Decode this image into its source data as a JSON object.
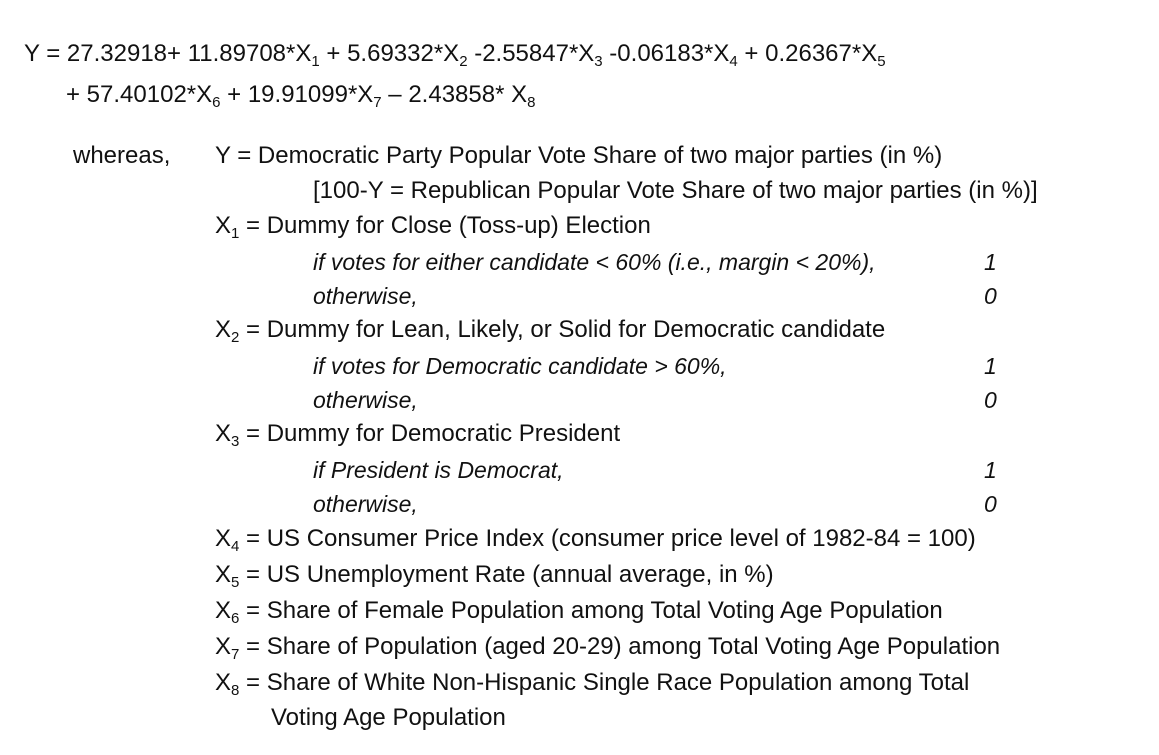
{
  "equation": {
    "line1": [
      {
        "t": "Y = 27.32918+ 11.89708*X"
      },
      {
        "s": "1"
      },
      {
        "t": " + 5.69332*X"
      },
      {
        "s": "2"
      },
      {
        "t": " -2.55847*X"
      },
      {
        "s": "3"
      },
      {
        "t": " -0.06183*X"
      },
      {
        "s": "4"
      },
      {
        "t": " + 0.26367*X"
      },
      {
        "s": "5"
      }
    ],
    "line2": [
      {
        "t": "+ 57.40102*X"
      },
      {
        "s": "6"
      },
      {
        "t": " + 19.91099*X"
      },
      {
        "s": "7"
      },
      {
        "t": " – 2.43858* X"
      },
      {
        "s": "8"
      }
    ]
  },
  "whereas_label": "whereas,",
  "definitions": {
    "y": "Y = Democratic Party Popular Vote Share of two major parties (in %)",
    "y_note": "[100-Y = Republican Popular Vote Share of two major parties (in %)]",
    "x1": {
      "var": "X",
      "sub": "1",
      "text": " = Dummy for Close (Toss-up) Election"
    },
    "x1_if": {
      "text": "if votes for either candidate < 60% (i.e., margin < 20%),",
      "value": "1"
    },
    "x1_else": {
      "text": "otherwise,",
      "value": "0"
    },
    "x2": {
      "var": "X",
      "sub": "2",
      "text": " = Dummy for Lean, Likely, or Solid for Democratic candidate"
    },
    "x2_if": {
      "text": "if votes for Democratic candidate > 60%,",
      "value": "1"
    },
    "x2_else": {
      "text": "otherwise,",
      "value": "0"
    },
    "x3": {
      "var": "X",
      "sub": "3",
      "text": " = Dummy for Democratic President"
    },
    "x3_if": {
      "text": "if President is Democrat,",
      "value": "1"
    },
    "x3_else": {
      "text": "otherwise,",
      "value": "0"
    },
    "x4": {
      "var": "X",
      "sub": "4",
      "text": " = US Consumer Price Index (consumer price level of 1982-84 = 100)"
    },
    "x5": {
      "var": "X",
      "sub": "5",
      "text": " = US Unemployment Rate (annual average, in %)"
    },
    "x6": {
      "var": "X",
      "sub": "6",
      "text": " = Share of Female Population among Total Voting Age Population"
    },
    "x7": {
      "var": "X",
      "sub": "7",
      "text": " = Share of Population (aged 20-29) among Total Voting Age Population"
    },
    "x8": {
      "var": "X",
      "sub": "8",
      "text": " = Share of White Non-Hispanic Single Race Population among Total"
    },
    "x8_cont": "Voting Age Population"
  }
}
